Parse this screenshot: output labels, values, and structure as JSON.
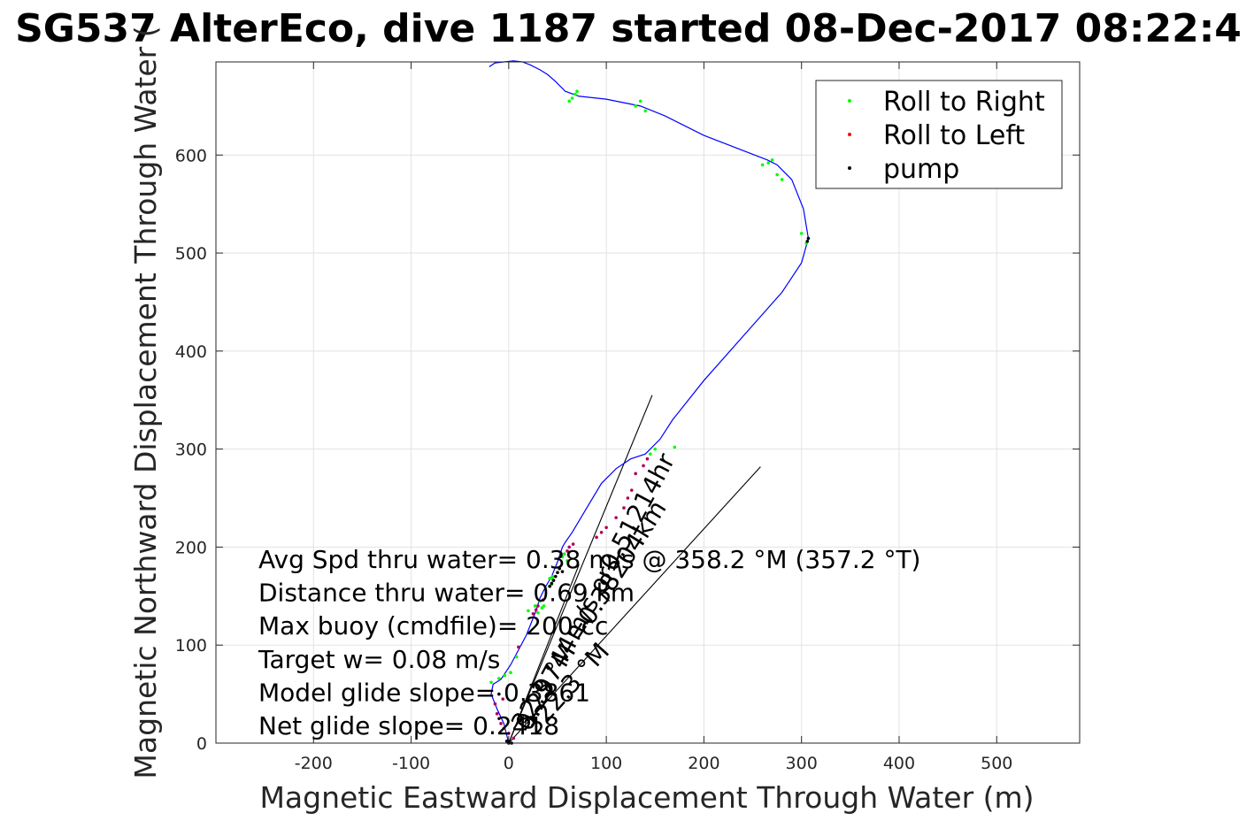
{
  "chart_data": {
    "type": "scatter",
    "title": "SG537 AlterEco, dive 1187 started 08-Dec-2017 08:22:4",
    "xlabel": "Magnetic Eastward Displacement Through Water (m)",
    "ylabel": "Magnetic Northward Displacement Through Water (",
    "xlim": [
      -300,
      585
    ],
    "ylim": [
      0,
      695
    ],
    "xticks": [
      -200,
      -100,
      0,
      100,
      200,
      300,
      400,
      500
    ],
    "yticks": [
      0,
      100,
      200,
      300,
      400,
      500,
      600
    ],
    "xtick_labels": [
      "-200",
      "-100",
      "0",
      "100",
      "200",
      "300",
      "400",
      "500"
    ],
    "ytick_labels": [
      "0",
      "100",
      "200",
      "300",
      "400",
      "500",
      "600"
    ],
    "grid": true,
    "legend_position": "top-right",
    "legend": [
      "Roll to Right",
      "Roll to Left",
      "pump"
    ],
    "colors": {
      "track": "#0000ff",
      "roll_right": "#00ff00",
      "roll_left": "#ff0000",
      "pump": "#000000",
      "mixed": "#b0005a",
      "vector": "#000000"
    },
    "track": {
      "x": [
        0,
        -5,
        -12,
        -18,
        -16,
        -8,
        2,
        10,
        18,
        24,
        28,
        32,
        38,
        44,
        50,
        55,
        58,
        65,
        80,
        95,
        110,
        125,
        140,
        155,
        168,
        200,
        240,
        280,
        300,
        307,
        302,
        290,
        275,
        265,
        200,
        160,
        135,
        100,
        72,
        58,
        48,
        40,
        32,
        22,
        14,
        5,
        -5,
        -14,
        -20
      ],
      "y": [
        0,
        20,
        35,
        50,
        60,
        65,
        80,
        95,
        110,
        125,
        135,
        148,
        160,
        170,
        185,
        200,
        205,
        215,
        240,
        265,
        280,
        290,
        295,
        310,
        330,
        370,
        415,
        460,
        490,
        515,
        545,
        575,
        590,
        595,
        620,
        640,
        650,
        657,
        660,
        665,
        675,
        682,
        687,
        692,
        695,
        696,
        695,
        694,
        690
      ]
    },
    "roll_right": {
      "x": [
        -18,
        -10,
        -4,
        2,
        20,
        27,
        32,
        42,
        45,
        55,
        57,
        62,
        65,
        68,
        70,
        130,
        135,
        140,
        145,
        150,
        170,
        260,
        266,
        270,
        275,
        280,
        300,
        305,
        45,
        44,
        42,
        8,
        30,
        34,
        36,
        60
      ],
      "y": [
        62,
        66,
        69,
        72,
        135,
        140,
        145,
        168,
        170,
        190,
        193,
        655,
        658,
        662,
        665,
        650,
        655,
        645,
        295,
        300,
        302,
        590,
        592,
        595,
        580,
        575,
        520,
        510,
        167,
        162,
        160,
        88,
        133,
        138,
        140,
        186
      ]
    },
    "roll_left": {
      "x": [
        -14,
        -12,
        -8,
        -5,
        0,
        5,
        10,
        25,
        28,
        30,
        35,
        60,
        62,
        66,
        90,
        95,
        100,
        110,
        118,
        122,
        126,
        130,
        138,
        142,
        -10,
        -6
      ],
      "y": [
        40,
        30,
        20,
        15,
        10,
        5,
        98,
        132,
        136,
        140,
        146,
        196,
        200,
        203,
        210,
        215,
        220,
        230,
        240,
        250,
        258,
        275,
        283,
        290,
        25,
        45
      ]
    },
    "pump": {
      "x": [
        0,
        -2,
        42,
        44,
        46,
        48,
        50,
        52,
        307,
        306,
        3,
        0,
        -10,
        55
      ],
      "y": [
        0,
        2,
        160,
        163,
        166,
        170,
        174,
        178,
        515,
        512,
        0,
        1,
        50,
        175
      ]
    },
    "vectors": [
      {
        "from": [
          0,
          0
        ],
        "to": [
          147,
          355
        ]
      },
      {
        "from": [
          0,
          0
        ],
        "to": [
          258,
          282
        ]
      },
      {
        "from": [
          0,
          0
        ],
        "to": [
          72,
          182
        ]
      }
    ],
    "vector_labels": [
      {
        "text": "32.3 °M =0.38204km",
        "angle_deg": 32.3
      },
      {
        "text": "322.3 °M",
        "angle_deg": 42
      },
      {
        "text": "0.29744m/s or0.51214hr",
        "angle_deg": 28
      }
    ],
    "annotations": [
      "Avg Spd thru water=  0.38 m/s @ 358.2 °M (357.2 °T)",
      "Distance thru water=  0.69 km",
      "Max buoy (cmdfile)= 200 cc",
      "Target w= 0.08 m/s",
      "Model glide slope= 0.3861",
      "Net glide slope= 0.2418"
    ]
  }
}
